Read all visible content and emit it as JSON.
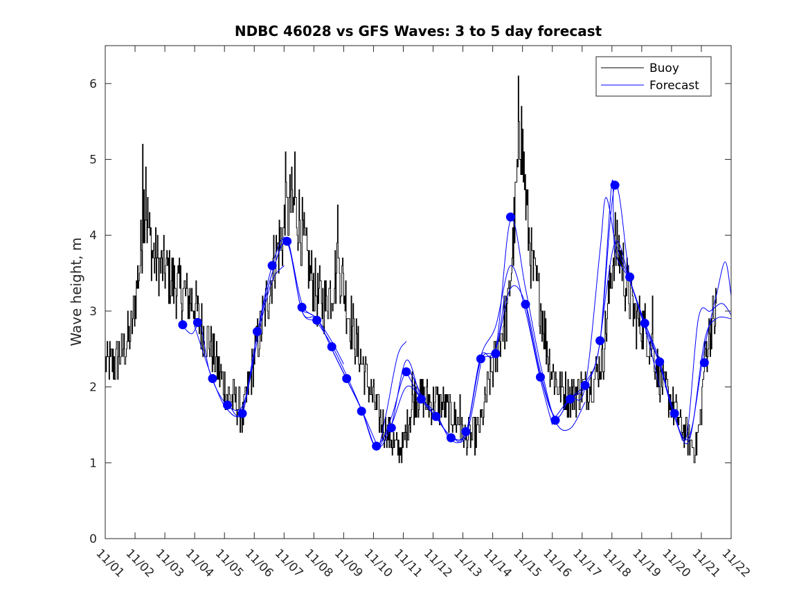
{
  "chart_data": {
    "type": "line",
    "title": "NDBC 46028 vs GFS Waves: 3 to 5 day forecast",
    "xlabel": "",
    "ylabel": "Wave height, m",
    "xlim": [
      0,
      21
    ],
    "ylim": [
      0,
      6.5
    ],
    "xticks": [
      0,
      1,
      2,
      3,
      4,
      5,
      6,
      7,
      8,
      9,
      10,
      11,
      12,
      13,
      14,
      15,
      16,
      17,
      18,
      19,
      20,
      21
    ],
    "xtick_labels": [
      "11/01",
      "11/02",
      "11/03",
      "11/04",
      "11/05",
      "11/06",
      "11/07",
      "11/08",
      "11/09",
      "11/10",
      "11/11",
      "11/12",
      "11/13",
      "11/14",
      "11/15",
      "11/16",
      "11/17",
      "11/18",
      "11/19",
      "11/20",
      "11/21",
      "11/22"
    ],
    "yticks": [
      0,
      1,
      2,
      3,
      4,
      5,
      6
    ],
    "ytick_labels": [
      "0",
      "1",
      "2",
      "3",
      "4",
      "5",
      "6"
    ],
    "grid": false,
    "legend": {
      "location": "top-right",
      "entries": [
        {
          "label": "Buoy",
          "color": "#000000"
        },
        {
          "label": "Forecast",
          "color": "#0000ff"
        }
      ]
    },
    "buoy": {
      "name": "Buoy",
      "color": "#000000",
      "anchors": [
        [
          0,
          2.3
        ],
        [
          0.3,
          2.3
        ],
        [
          0.6,
          2.5
        ],
        [
          0.85,
          2.7
        ],
        [
          1.05,
          3.3
        ],
        [
          1.2,
          3.8
        ],
        [
          1.3,
          4.5
        ],
        [
          1.4,
          4.2
        ],
        [
          1.55,
          3.8
        ],
        [
          1.8,
          3.6
        ],
        [
          2.1,
          3.5
        ],
        [
          2.4,
          3.3
        ],
        [
          2.7,
          3.2
        ],
        [
          3.0,
          3.1
        ],
        [
          3.2,
          2.8
        ],
        [
          3.5,
          2.6
        ],
        [
          3.8,
          2.2
        ],
        [
          4.1,
          1.9
        ],
        [
          4.4,
          1.8
        ],
        [
          4.6,
          1.6
        ],
        [
          4.8,
          2.0
        ],
        [
          5.1,
          2.6
        ],
        [
          5.4,
          3.1
        ],
        [
          5.7,
          3.7
        ],
        [
          6.0,
          4.1
        ],
        [
          6.25,
          4.4
        ],
        [
          6.5,
          4.2
        ],
        [
          6.8,
          3.6
        ],
        [
          7.1,
          3.2
        ],
        [
          7.4,
          3.1
        ],
        [
          7.65,
          3.4
        ],
        [
          7.85,
          3.6
        ],
        [
          8.1,
          3.1
        ],
        [
          8.4,
          2.6
        ],
        [
          8.7,
          2.2
        ],
        [
          9.0,
          1.8
        ],
        [
          9.3,
          1.5
        ],
        [
          9.6,
          1.3
        ],
        [
          9.85,
          1.15
        ],
        [
          10.0,
          1.25
        ],
        [
          10.2,
          1.6
        ],
        [
          10.4,
          1.9
        ],
        [
          10.7,
          1.85
        ],
        [
          11.0,
          1.8
        ],
        [
          11.3,
          1.75
        ],
        [
          11.6,
          1.65
        ],
        [
          11.85,
          1.55
        ],
        [
          12.0,
          1.35
        ],
        [
          12.3,
          1.3
        ],
        [
          12.6,
          1.5
        ],
        [
          12.9,
          2.1
        ],
        [
          13.2,
          2.6
        ],
        [
          13.5,
          3.0
        ],
        [
          13.7,
          4.0
        ],
        [
          13.85,
          5.0
        ],
        [
          13.95,
          5.4
        ],
        [
          14.1,
          4.5
        ],
        [
          14.3,
          3.6
        ],
        [
          14.6,
          3.1
        ],
        [
          14.9,
          2.3
        ],
        [
          15.2,
          2.0
        ],
        [
          15.5,
          1.9
        ],
        [
          15.8,
          1.9
        ],
        [
          16.1,
          2.0
        ],
        [
          16.4,
          2.1
        ],
        [
          16.7,
          2.4
        ],
        [
          16.9,
          3.2
        ],
        [
          17.05,
          3.8
        ],
        [
          17.25,
          3.8
        ],
        [
          17.5,
          3.3
        ],
        [
          17.8,
          2.9
        ],
        [
          18.1,
          2.8
        ],
        [
          18.4,
          2.4
        ],
        [
          18.7,
          2.0
        ],
        [
          19.0,
          1.8
        ],
        [
          19.3,
          1.5
        ],
        [
          19.6,
          1.3
        ],
        [
          19.8,
          1.2
        ],
        [
          19.95,
          1.5
        ],
        [
          20.1,
          2.3
        ],
        [
          20.3,
          2.8
        ],
        [
          20.5,
          3.0
        ]
      ],
      "spikes": [
        [
          1.25,
          5.2
        ],
        [
          1.35,
          4.9
        ],
        [
          6.05,
          5.1
        ],
        [
          6.35,
          5.1
        ],
        [
          7.8,
          4.4
        ],
        [
          13.85,
          6.1
        ],
        [
          13.95,
          5.7
        ],
        [
          17.1,
          4.3
        ],
        [
          18.35,
          3.2
        ],
        [
          10.3,
          2.2
        ],
        [
          11.9,
          1.9
        ]
      ]
    },
    "forecast_runs": [
      [
        [
          2.6,
          2.8
        ],
        [
          2.9,
          2.7
        ],
        [
          3.2,
          2.8
        ],
        [
          3.5,
          2.2
        ],
        [
          4.0,
          1.8
        ],
        [
          4.5,
          1.7
        ],
        [
          4.8,
          2.0
        ],
        [
          5.2,
          2.8
        ],
        [
          5.6,
          3.4
        ],
        [
          6.0,
          3.6
        ]
      ],
      [
        [
          3.0,
          2.8
        ],
        [
          3.6,
          2.1
        ],
        [
          4.1,
          1.7
        ],
        [
          4.6,
          1.7
        ],
        [
          5.1,
          2.7
        ],
        [
          5.6,
          3.5
        ],
        [
          6.1,
          3.9
        ],
        [
          6.6,
          3.1
        ],
        [
          7.1,
          2.9
        ],
        [
          7.6,
          2.6
        ],
        [
          8.0,
          2.3
        ]
      ],
      [
        [
          4.1,
          1.8
        ],
        [
          4.6,
          1.65
        ],
        [
          5.1,
          2.7
        ],
        [
          5.6,
          3.6
        ],
        [
          6.1,
          3.95
        ],
        [
          6.6,
          3.0
        ],
        [
          7.1,
          2.9
        ],
        [
          7.6,
          2.5
        ],
        [
          8.1,
          2.1
        ],
        [
          8.6,
          1.7
        ],
        [
          9.1,
          1.25
        ]
      ],
      [
        [
          5.1,
          2.7
        ],
        [
          5.6,
          3.5
        ],
        [
          6.1,
          3.9
        ],
        [
          6.6,
          3.0
        ],
        [
          7.1,
          2.85
        ],
        [
          7.6,
          2.55
        ],
        [
          8.1,
          2.15
        ],
        [
          8.6,
          1.7
        ],
        [
          9.1,
          1.2
        ],
        [
          9.6,
          1.6
        ],
        [
          10.1,
          2.2
        ],
        [
          10.6,
          1.9
        ]
      ],
      [
        [
          6.6,
          3.0
        ],
        [
          7.1,
          2.9
        ],
        [
          7.6,
          2.5
        ],
        [
          8.1,
          2.1
        ],
        [
          8.6,
          1.7
        ],
        [
          9.1,
          1.2
        ],
        [
          9.4,
          1.6
        ],
        [
          9.8,
          2.4
        ],
        [
          10.1,
          2.6
        ]
      ],
      [
        [
          7.6,
          2.5
        ],
        [
          8.1,
          2.1
        ],
        [
          8.6,
          1.7
        ],
        [
          9.1,
          1.2
        ],
        [
          9.6,
          1.5
        ],
        [
          10.1,
          2.35
        ],
        [
          10.6,
          1.85
        ],
        [
          11.1,
          1.6
        ],
        [
          11.6,
          1.35
        ],
        [
          12.1,
          1.35
        ],
        [
          12.6,
          2.3
        ]
      ],
      [
        [
          9.1,
          1.2
        ],
        [
          9.6,
          1.5
        ],
        [
          10.1,
          2.0
        ],
        [
          10.6,
          1.85
        ],
        [
          11.1,
          1.6
        ],
        [
          11.6,
          1.35
        ],
        [
          12.1,
          1.4
        ],
        [
          12.6,
          2.35
        ],
        [
          13.1,
          2.5
        ],
        [
          13.4,
          3.2
        ]
      ],
      [
        [
          10.1,
          2.2
        ],
        [
          10.6,
          1.85
        ],
        [
          11.1,
          1.65
        ],
        [
          11.6,
          1.3
        ],
        [
          12.1,
          1.4
        ],
        [
          12.6,
          2.4
        ],
        [
          13.1,
          2.8
        ],
        [
          13.6,
          3.6
        ],
        [
          14.1,
          3.0
        ],
        [
          14.6,
          2.1
        ],
        [
          15.0,
          1.5
        ]
      ],
      [
        [
          11.1,
          1.6
        ],
        [
          11.6,
          1.35
        ],
        [
          12.1,
          1.4
        ],
        [
          12.6,
          2.4
        ],
        [
          13.1,
          2.5
        ],
        [
          13.6,
          4.2
        ],
        [
          14.1,
          3.3
        ],
        [
          14.6,
          2.3
        ],
        [
          15.1,
          1.55
        ],
        [
          15.6,
          1.45
        ],
        [
          16.1,
          1.8
        ]
      ],
      [
        [
          12.6,
          2.4
        ],
        [
          13.1,
          2.5
        ],
        [
          13.6,
          3.3
        ],
        [
          14.1,
          3.1
        ],
        [
          14.6,
          2.2
        ],
        [
          15.1,
          1.6
        ],
        [
          15.6,
          1.85
        ],
        [
          16.1,
          2.0
        ],
        [
          16.6,
          3.8
        ],
        [
          16.8,
          4.5
        ],
        [
          17.1,
          3.9
        ]
      ],
      [
        [
          14.1,
          3.1
        ],
        [
          14.6,
          2.15
        ],
        [
          15.1,
          1.6
        ],
        [
          15.6,
          1.85
        ],
        [
          16.1,
          2.05
        ],
        [
          16.6,
          2.6
        ],
        [
          17.0,
          4.7
        ],
        [
          17.1,
          3.8
        ],
        [
          17.6,
          3.4
        ],
        [
          18.1,
          2.8
        ],
        [
          18.6,
          2.0
        ]
      ],
      [
        [
          15.1,
          1.6
        ],
        [
          15.6,
          1.85
        ],
        [
          16.1,
          2.0
        ],
        [
          16.6,
          2.6
        ],
        [
          17.1,
          4.65
        ],
        [
          17.6,
          3.45
        ],
        [
          18.1,
          2.85
        ],
        [
          18.6,
          2.3
        ],
        [
          19.1,
          1.6
        ],
        [
          19.6,
          1.3
        ],
        [
          20.1,
          2.6
        ],
        [
          20.5,
          2.9
        ],
        [
          21.0,
          2.9
        ]
      ],
      [
        [
          16.6,
          2.6
        ],
        [
          17.1,
          3.9
        ],
        [
          17.6,
          3.4
        ],
        [
          18.1,
          2.8
        ],
        [
          18.6,
          2.3
        ],
        [
          19.1,
          1.65
        ],
        [
          19.5,
          1.35
        ],
        [
          19.9,
          2.9
        ],
        [
          20.3,
          3.0
        ],
        [
          20.7,
          3.1
        ],
        [
          21.0,
          2.95
        ]
      ],
      [
        [
          17.1,
          3.9
        ],
        [
          17.6,
          3.4
        ],
        [
          18.1,
          2.85
        ],
        [
          18.6,
          2.35
        ],
        [
          19.1,
          1.6
        ],
        [
          19.6,
          1.35
        ],
        [
          20.1,
          2.5
        ],
        [
          20.5,
          3.2
        ],
        [
          20.8,
          3.65
        ],
        [
          21.0,
          3.2
        ]
      ]
    ],
    "forecast_points": [
      [
        2.6,
        2.82
      ],
      [
        3.1,
        2.85
      ],
      [
        3.6,
        2.11
      ],
      [
        4.1,
        1.76
      ],
      [
        4.6,
        1.65
      ],
      [
        5.1,
        2.73
      ],
      [
        5.6,
        3.6
      ],
      [
        6.1,
        3.92
      ],
      [
        6.6,
        3.05
      ],
      [
        7.1,
        2.88
      ],
      [
        7.6,
        2.53
      ],
      [
        8.1,
        2.11
      ],
      [
        8.6,
        1.68
      ],
      [
        9.1,
        1.22
      ],
      [
        9.6,
        1.46
      ],
      [
        10.1,
        2.2
      ],
      [
        10.6,
        1.84
      ],
      [
        11.1,
        1.61
      ],
      [
        11.6,
        1.33
      ],
      [
        12.1,
        1.41
      ],
      [
        12.6,
        2.37
      ],
      [
        13.1,
        2.44
      ],
      [
        13.6,
        4.24
      ],
      [
        14.1,
        3.09
      ],
      [
        14.6,
        2.13
      ],
      [
        15.1,
        1.56
      ],
      [
        15.6,
        1.84
      ],
      [
        16.1,
        2.02
      ],
      [
        16.6,
        2.61
      ],
      [
        17.1,
        4.66
      ],
      [
        17.6,
        3.45
      ],
      [
        18.1,
        2.84
      ],
      [
        18.6,
        2.33
      ],
      [
        19.1,
        1.65
      ],
      [
        20.1,
        2.32
      ]
    ]
  }
}
